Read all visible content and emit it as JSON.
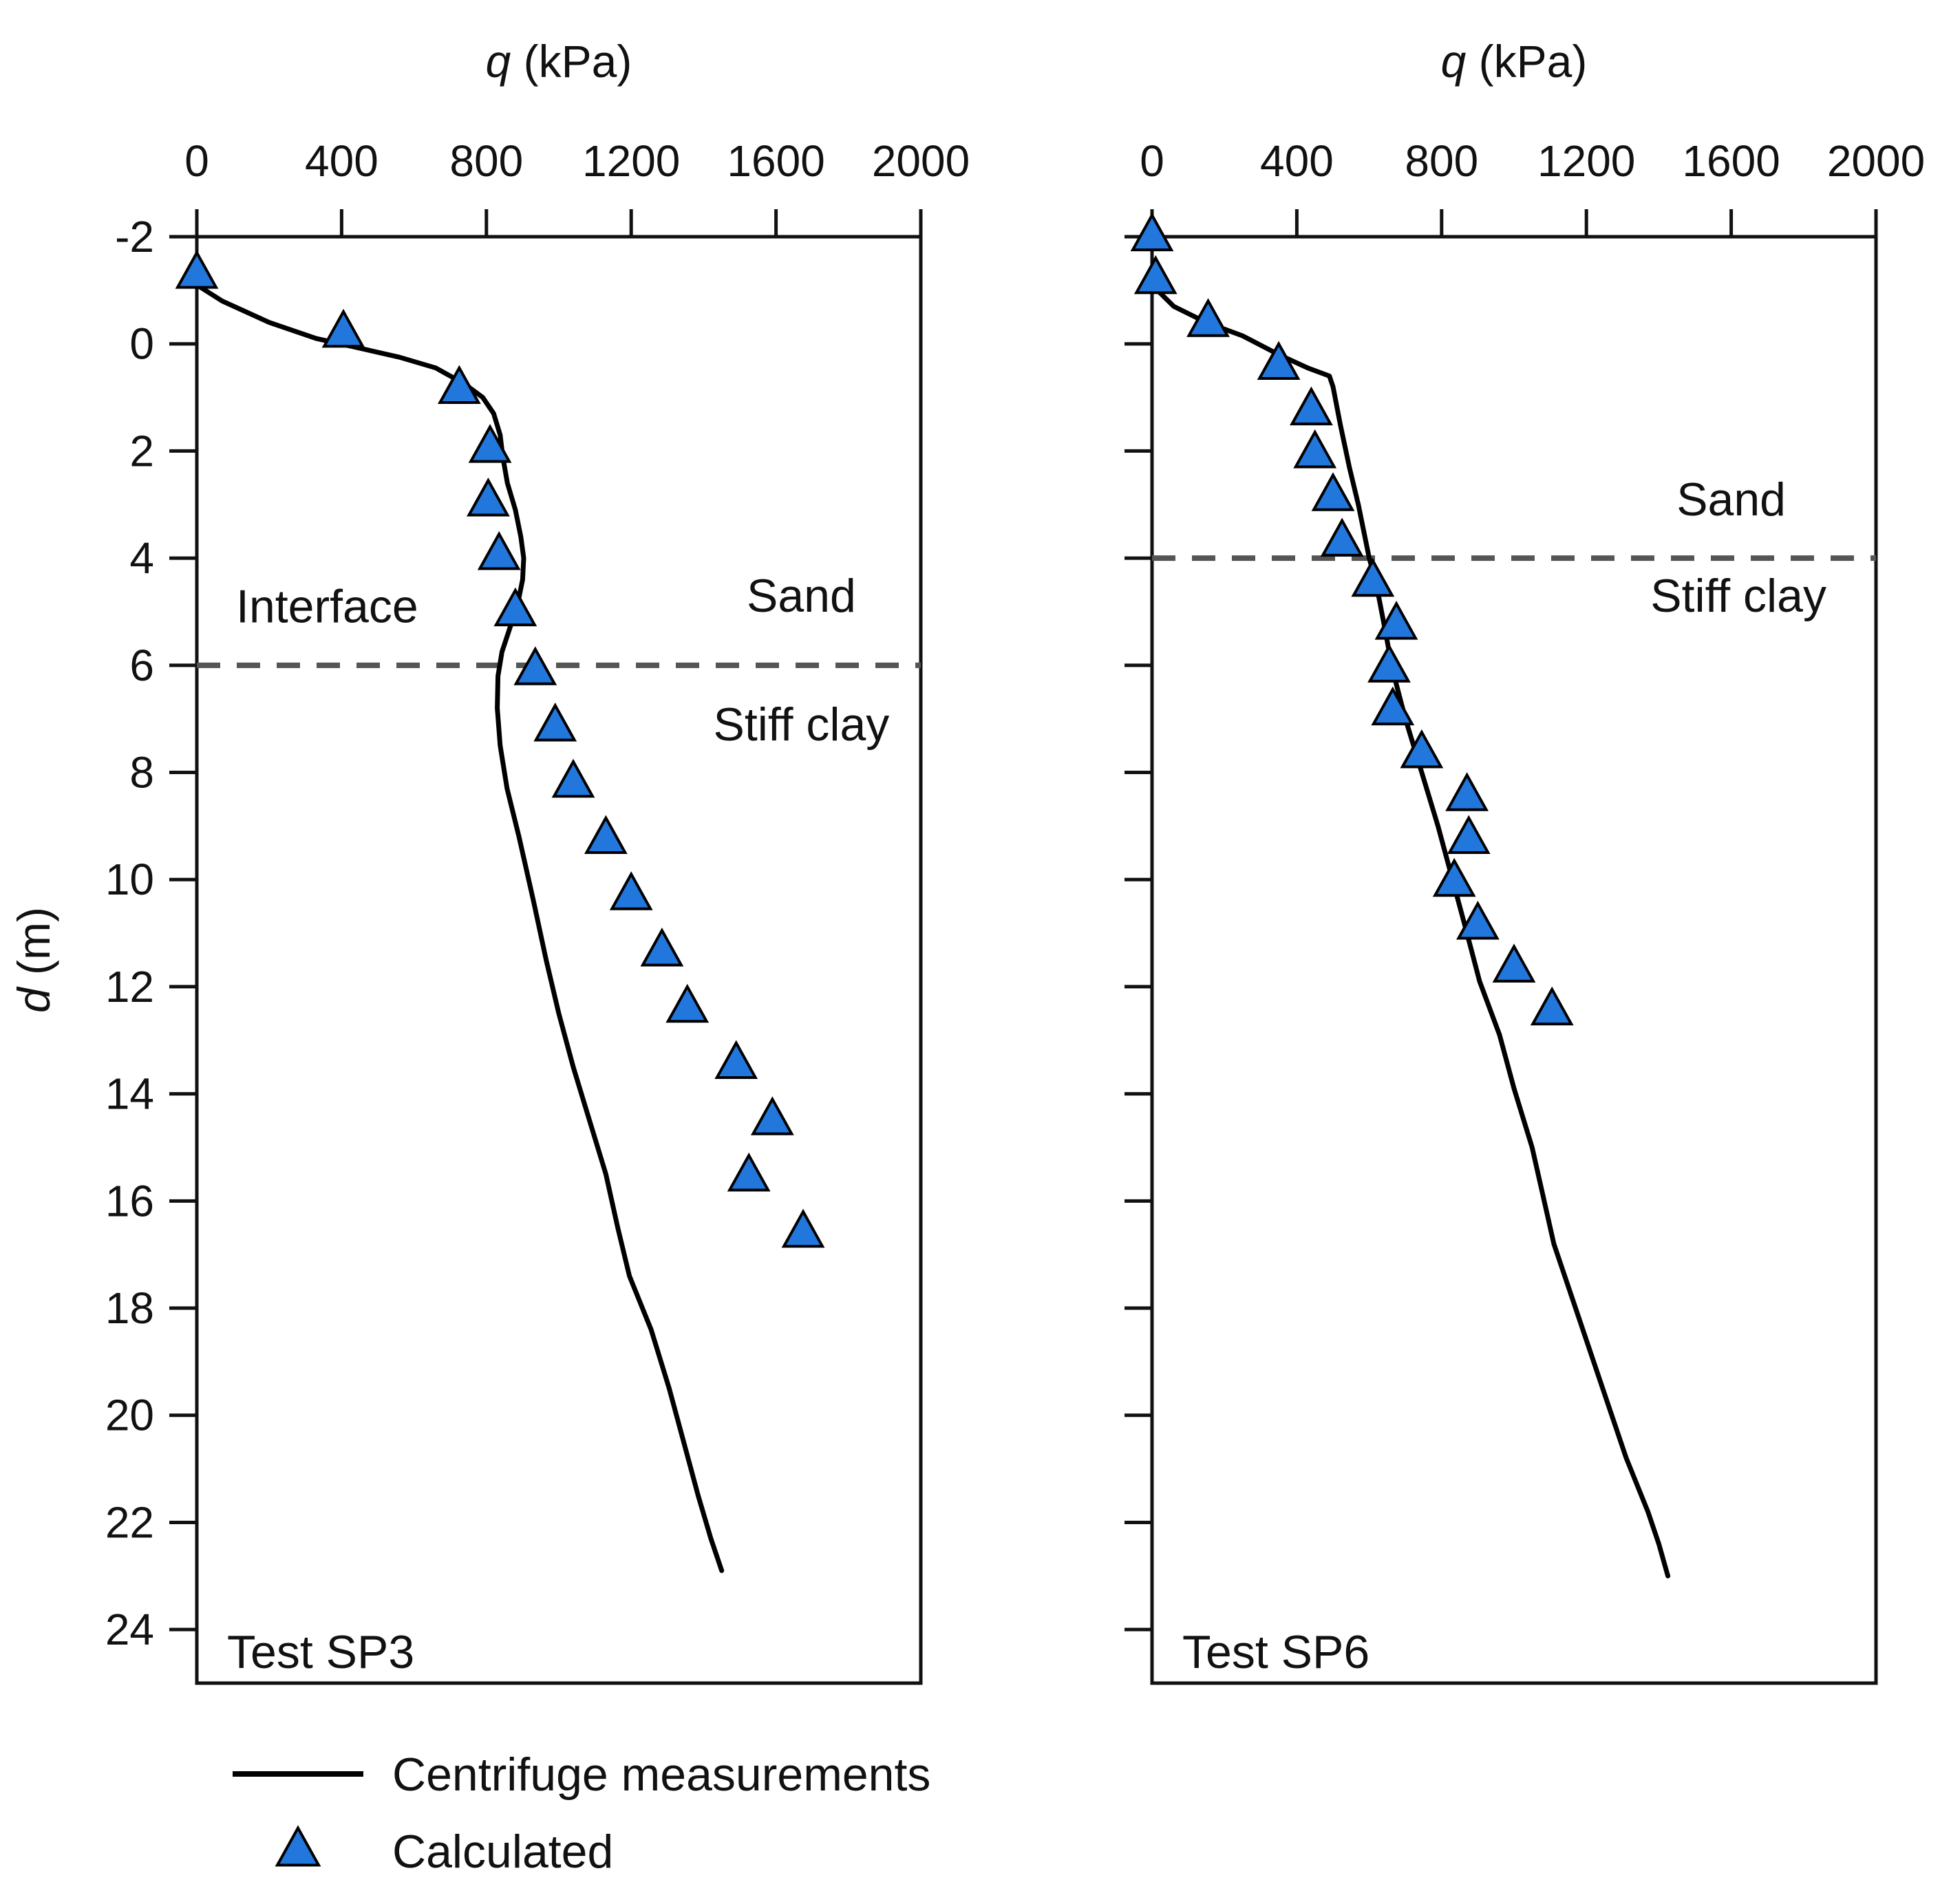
{
  "chart_data": [
    {
      "type": "line",
      "panel_label": "Test SP3",
      "title": "",
      "xlabel_italic": "q",
      "xlabel_units": " (kPa)",
      "ylabel_italic": "d",
      "ylabel_units": " (m)",
      "xlim": [
        0,
        2000
      ],
      "ylim": [
        -2,
        25
      ],
      "y_inverted": true,
      "x_axis_position": "top",
      "xticks": [
        0,
        400,
        800,
        1200,
        1600,
        2000
      ],
      "yticks": [
        -2,
        0,
        2,
        4,
        6,
        8,
        10,
        12,
        14,
        16,
        18,
        20,
        22,
        24
      ],
      "show_yticklabels": true,
      "interface_depth": 6,
      "annotations": [
        {
          "text": "Interface",
          "q": 360,
          "d": 5.2
        },
        {
          "text": "Sand",
          "q": 1670,
          "d": 5.0
        },
        {
          "text": "Stiff clay",
          "q": 1670,
          "d": 7.4
        }
      ],
      "series": [
        {
          "name": "Centrifuge measurements",
          "style": "line",
          "color": "#000000",
          "points": [
            [
              0,
              -1.1
            ],
            [
              70,
              -0.8
            ],
            [
              200,
              -0.4
            ],
            [
              330,
              -0.1
            ],
            [
              430,
              0.05
            ],
            [
              560,
              0.25
            ],
            [
              660,
              0.45
            ],
            [
              740,
              0.75
            ],
            [
              790,
              1.0
            ],
            [
              820,
              1.3
            ],
            [
              838,
              1.7
            ],
            [
              845,
              2.1
            ],
            [
              858,
              2.6
            ],
            [
              880,
              3.1
            ],
            [
              895,
              3.6
            ],
            [
              903,
              4.0
            ],
            [
              900,
              4.4
            ],
            [
              888,
              4.8
            ],
            [
              865,
              5.3
            ],
            [
              843,
              5.75
            ],
            [
              832,
              6.2
            ],
            [
              830,
              6.8
            ],
            [
              838,
              7.5
            ],
            [
              857,
              8.3
            ],
            [
              890,
              9.2
            ],
            [
              930,
              10.4
            ],
            [
              965,
              11.5
            ],
            [
              1000,
              12.5
            ],
            [
              1040,
              13.5
            ],
            [
              1085,
              14.5
            ],
            [
              1130,
              15.5
            ],
            [
              1163,
              16.5
            ],
            [
              1195,
              17.4
            ],
            [
              1255,
              18.4
            ],
            [
              1305,
              19.5
            ],
            [
              1345,
              20.5
            ],
            [
              1385,
              21.5
            ],
            [
              1420,
              22.3
            ],
            [
              1450,
              22.9
            ]
          ]
        },
        {
          "name": "Calculated",
          "style": "markers",
          "marker": "triangle",
          "color": "#2277dd",
          "points": [
            [
              0,
              -1.3
            ],
            [
              405,
              -0.2
            ],
            [
              725,
              0.85
            ],
            [
              810,
              1.95
            ],
            [
              805,
              2.95
            ],
            [
              835,
              3.95
            ],
            [
              880,
              5.0
            ],
            [
              935,
              6.1
            ],
            [
              990,
              7.15
            ],
            [
              1040,
              8.2
            ],
            [
              1130,
              9.25
            ],
            [
              1200,
              10.3
            ],
            [
              1285,
              11.35
            ],
            [
              1355,
              12.4
            ],
            [
              1490,
              13.45
            ],
            [
              1590,
              14.5
            ],
            [
              1525,
              15.55
            ],
            [
              1675,
              16.6
            ]
          ]
        }
      ]
    },
    {
      "type": "line",
      "panel_label": "Test SP6",
      "title": "",
      "xlabel_italic": "q",
      "xlabel_units": " (kPa)",
      "xlim": [
        0,
        2000
      ],
      "ylim": [
        -2,
        25
      ],
      "y_inverted": true,
      "x_axis_position": "top",
      "xticks": [
        0,
        400,
        800,
        1200,
        1600,
        2000
      ],
      "yticks": [
        -2,
        0,
        2,
        4,
        6,
        8,
        10,
        12,
        14,
        16,
        18,
        20,
        22,
        24
      ],
      "show_yticklabels": false,
      "interface_depth": 4,
      "annotations": [
        {
          "text": "Sand",
          "q": 1600,
          "d": 3.2
        },
        {
          "text": "Stiff clay",
          "q": 1620,
          "d": 5.0
        }
      ],
      "series": [
        {
          "name": "Centrifuge measurements",
          "style": "line",
          "color": "#000000",
          "points": [
            [
              0,
              -1.1
            ],
            [
              60,
              -0.7
            ],
            [
              150,
              -0.4
            ],
            [
              250,
              -0.15
            ],
            [
              350,
              0.2
            ],
            [
              430,
              0.45
            ],
            [
              490,
              0.6
            ],
            [
              500,
              0.8
            ],
            [
              520,
              1.5
            ],
            [
              545,
              2.3
            ],
            [
              570,
              3.0
            ],
            [
              585,
              3.5
            ],
            [
              600,
              4.0
            ],
            [
              620,
              4.5
            ],
            [
              640,
              5.2
            ],
            [
              665,
              6.1
            ],
            [
              700,
              7.0
            ],
            [
              745,
              8.0
            ],
            [
              790,
              9.0
            ],
            [
              830,
              10.0
            ],
            [
              870,
              11.0
            ],
            [
              905,
              11.9
            ],
            [
              960,
              12.9
            ],
            [
              1000,
              13.9
            ],
            [
              1050,
              15.0
            ],
            [
              1080,
              15.9
            ],
            [
              1110,
              16.8
            ],
            [
              1160,
              17.8
            ],
            [
              1215,
              18.9
            ],
            [
              1265,
              19.9
            ],
            [
              1310,
              20.8
            ],
            [
              1370,
              21.8
            ],
            [
              1400,
              22.4
            ],
            [
              1425,
              23.0
            ]
          ]
        },
        {
          "name": "Calculated",
          "style": "markers",
          "marker": "triangle",
          "color": "#2277dd",
          "points": [
            [
              0,
              -2.0
            ],
            [
              10,
              -1.2
            ],
            [
              155,
              -0.4
            ],
            [
              350,
              0.4
            ],
            [
              440,
              1.25
            ],
            [
              450,
              2.05
            ],
            [
              500,
              2.85
            ],
            [
              525,
              3.7
            ],
            [
              610,
              4.45
            ],
            [
              675,
              5.25
            ],
            [
              655,
              6.05
            ],
            [
              665,
              6.85
            ],
            [
              745,
              7.65
            ],
            [
              870,
              8.45
            ],
            [
              875,
              9.25
            ],
            [
              835,
              10.05
            ],
            [
              900,
              10.85
            ],
            [
              1000,
              11.65
            ],
            [
              1105,
              12.45
            ]
          ]
        }
      ]
    }
  ],
  "legend": {
    "placement": "bottom-left",
    "entries": [
      {
        "label": "Centrifuge measurements",
        "kind": "line"
      },
      {
        "label": "Calculated",
        "kind": "triangle"
      }
    ]
  },
  "colors": {
    "marker_fill": "#2277dd",
    "line": "#000000",
    "interface": "#555555",
    "frame": "#111111"
  }
}
